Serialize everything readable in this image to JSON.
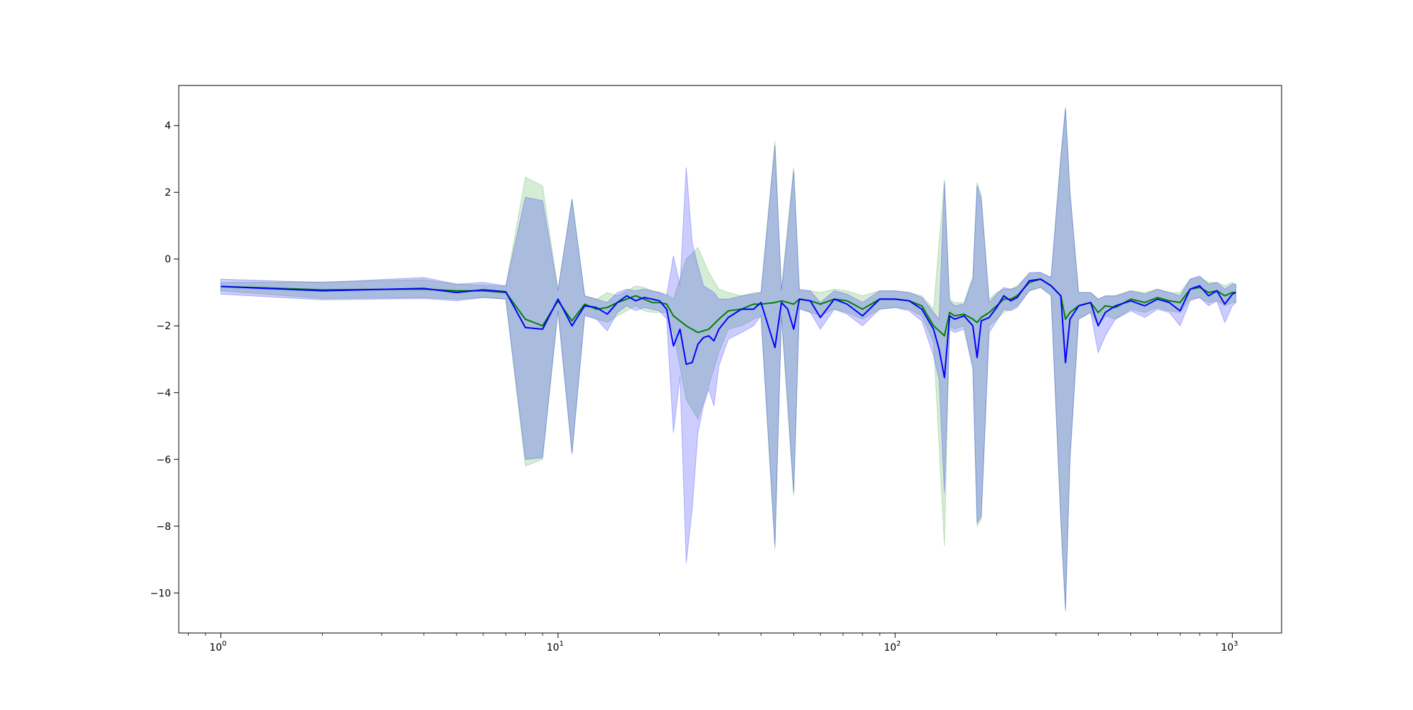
{
  "chart_data": {
    "type": "line",
    "title": "",
    "xlabel": "",
    "ylabel": "",
    "xscale": "log",
    "xlim": [
      0.75,
      1400
    ],
    "ylim": [
      -11.2,
      5.2
    ],
    "grid": false,
    "legend": "none",
    "x_ticks": [
      {
        "base": "10",
        "exp": "0",
        "value": 1
      },
      {
        "base": "10",
        "exp": "1",
        "value": 10
      },
      {
        "base": "10",
        "exp": "2",
        "value": 100
      },
      {
        "base": "10",
        "exp": "3",
        "value": 1000
      }
    ],
    "y_ticks": [
      {
        "value": 4,
        "label": "4"
      },
      {
        "value": 2,
        "label": "2"
      },
      {
        "value": 0,
        "label": "0"
      },
      {
        "value": -2,
        "label": "−2"
      },
      {
        "value": -4,
        "label": "−4"
      },
      {
        "value": -6,
        "label": "−6"
      },
      {
        "value": -8,
        "label": "−8"
      },
      {
        "value": -10,
        "label": "−10"
      }
    ],
    "series": [
      {
        "color": "#008000",
        "band_color": "#2ca02c",
        "points": [
          [
            1,
            -0.82,
            -0.7,
            -0.95
          ],
          [
            2,
            -0.92,
            -0.68,
            -1.18
          ],
          [
            4,
            -0.9,
            -0.62,
            -1.15
          ],
          [
            5,
            -0.95,
            -0.75,
            -1.2
          ],
          [
            6,
            -0.95,
            -0.78,
            -1.15
          ],
          [
            7,
            -1.0,
            -0.82,
            -1.2
          ],
          [
            8,
            -1.8,
            2.45,
            -6.2
          ],
          [
            9,
            -2.0,
            2.2,
            -6.0
          ],
          [
            10,
            -1.25,
            -0.9,
            -1.55
          ],
          [
            11,
            -1.85,
            1.8,
            -5.8
          ],
          [
            12,
            -1.35,
            -1.1,
            -1.65
          ],
          [
            13,
            -1.5,
            -1.2,
            -1.8
          ],
          [
            14,
            -1.45,
            -1.0,
            -1.9
          ],
          [
            15,
            -1.3,
            -1.1,
            -1.7
          ],
          [
            16,
            -1.2,
            -0.95,
            -1.55
          ],
          [
            17,
            -1.1,
            -0.8,
            -1.4
          ],
          [
            18,
            -1.2,
            -0.85,
            -1.55
          ],
          [
            19,
            -1.3,
            -0.95,
            -1.6
          ],
          [
            20,
            -1.3,
            -1.0,
            -1.6
          ],
          [
            21,
            -1.35,
            -1.05,
            -1.6
          ],
          [
            22,
            -1.7,
            -1.2,
            -2.2
          ],
          [
            24,
            -2.0,
            0.0,
            -4.2
          ],
          [
            26,
            -2.2,
            0.35,
            -4.8
          ],
          [
            28,
            -2.1,
            -0.4,
            -3.8
          ],
          [
            30,
            -1.8,
            -0.9,
            -2.8
          ],
          [
            32,
            -1.55,
            -1.0,
            -2.1
          ],
          [
            35,
            -1.5,
            -1.1,
            -2.0
          ],
          [
            38,
            -1.35,
            -1.0,
            -1.8
          ],
          [
            40,
            -1.35,
            -1.0,
            -1.7
          ],
          [
            44,
            -1.3,
            3.55,
            -8.7
          ],
          [
            46,
            -1.25,
            -0.9,
            -1.7
          ],
          [
            48,
            -1.3,
            1.0,
            -4.5
          ],
          [
            50,
            -1.35,
            2.75,
            -7.1
          ],
          [
            52,
            -1.2,
            -0.95,
            -1.45
          ],
          [
            56,
            -1.25,
            -0.95,
            -1.6
          ],
          [
            60,
            -1.35,
            -1.0,
            -1.7
          ],
          [
            66,
            -1.2,
            -0.9,
            -1.5
          ],
          [
            72,
            -1.25,
            -0.95,
            -1.6
          ],
          [
            80,
            -1.5,
            -1.1,
            -1.8
          ],
          [
            90,
            -1.2,
            -0.95,
            -1.5
          ],
          [
            100,
            -1.2,
            -0.95,
            -1.45
          ],
          [
            110,
            -1.25,
            -1.0,
            -1.5
          ],
          [
            120,
            -1.4,
            -1.1,
            -1.7
          ],
          [
            130,
            -2.0,
            -1.5,
            -2.5
          ],
          [
            140,
            -2.3,
            2.4,
            -8.6
          ],
          [
            145,
            -1.6,
            -1.2,
            -2.0
          ],
          [
            150,
            -1.7,
            -1.3,
            -2.1
          ],
          [
            160,
            -1.65,
            -1.3,
            -2.0
          ],
          [
            170,
            -1.8,
            -0.5,
            -3.2
          ],
          [
            175,
            -1.9,
            2.3,
            -8.0
          ],
          [
            180,
            -1.75,
            1.9,
            -7.8
          ],
          [
            190,
            -1.6,
            -1.2,
            -2.0
          ],
          [
            200,
            -1.4,
            -1.0,
            -1.8
          ],
          [
            210,
            -1.2,
            -0.9,
            -1.6
          ],
          [
            220,
            -1.2,
            -0.9,
            -1.5
          ],
          [
            230,
            -1.1,
            -0.8,
            -1.4
          ],
          [
            250,
            -0.7,
            -0.45,
            -0.95
          ],
          [
            270,
            -0.6,
            -0.4,
            -0.85
          ],
          [
            290,
            -0.8,
            -0.55,
            -1.05
          ],
          [
            310,
            -1.1,
            3.1,
            -7.9
          ],
          [
            320,
            -1.8,
            4.5,
            -10.5
          ],
          [
            330,
            -1.6,
            2.0,
            -6.0
          ],
          [
            350,
            -1.4,
            -1.0,
            -1.8
          ],
          [
            380,
            -1.3,
            -1.0,
            -1.6
          ],
          [
            400,
            -1.6,
            -1.2,
            -2.0
          ],
          [
            420,
            -1.4,
            -1.1,
            -1.7
          ],
          [
            450,
            -1.45,
            -1.1,
            -1.8
          ],
          [
            500,
            -1.2,
            -0.95,
            -1.5
          ],
          [
            550,
            -1.3,
            -1.0,
            -1.6
          ],
          [
            600,
            -1.15,
            -0.9,
            -1.45
          ],
          [
            650,
            -1.25,
            -1.0,
            -1.55
          ],
          [
            700,
            -1.3,
            -1.0,
            -1.6
          ],
          [
            750,
            -0.9,
            -0.6,
            -1.2
          ],
          [
            800,
            -0.85,
            -0.55,
            -1.15
          ],
          [
            850,
            -1.0,
            -0.7,
            -1.3
          ],
          [
            900,
            -0.95,
            -0.7,
            -1.25
          ],
          [
            950,
            -1.1,
            -0.8,
            -1.4
          ],
          [
            1000,
            -1.0,
            -0.7,
            -1.3
          ],
          [
            1024,
            -1.0,
            -0.75,
            -1.3
          ]
        ]
      },
      {
        "color": "#0000ff",
        "band_color": "#0000ff",
        "points": [
          [
            1,
            -0.82,
            -0.6,
            -1.05
          ],
          [
            2,
            -0.95,
            -0.7,
            -1.22
          ],
          [
            4,
            -0.88,
            -0.55,
            -1.18
          ],
          [
            5,
            -1.0,
            -0.75,
            -1.25
          ],
          [
            6,
            -0.92,
            -0.7,
            -1.15
          ],
          [
            7,
            -0.98,
            -0.8,
            -1.2
          ],
          [
            8,
            -2.05,
            1.85,
            -6.0
          ],
          [
            9,
            -2.1,
            1.75,
            -5.95
          ],
          [
            10,
            -1.2,
            -0.95,
            -1.55
          ],
          [
            11,
            -2.0,
            1.8,
            -5.85
          ],
          [
            12,
            -1.4,
            -1.1,
            -1.7
          ],
          [
            13,
            -1.45,
            -1.2,
            -1.8
          ],
          [
            14,
            -1.65,
            -1.3,
            -2.15
          ],
          [
            15,
            -1.3,
            -1.0,
            -1.6
          ],
          [
            16,
            -1.1,
            -0.9,
            -1.4
          ],
          [
            17,
            -1.25,
            -0.95,
            -1.55
          ],
          [
            18,
            -1.15,
            -0.9,
            -1.45
          ],
          [
            19,
            -1.2,
            -0.95,
            -1.5
          ],
          [
            20,
            -1.25,
            -1.0,
            -1.55
          ],
          [
            21,
            -1.5,
            -1.1,
            -1.8
          ],
          [
            22,
            -2.6,
            0.1,
            -5.2
          ],
          [
            23,
            -2.1,
            -0.8,
            -3.5
          ],
          [
            24,
            -3.15,
            2.75,
            -9.1
          ],
          [
            25,
            -3.1,
            0.5,
            -7.5
          ],
          [
            26,
            -2.55,
            -0.2,
            -5.2
          ],
          [
            27,
            -2.35,
            -0.8,
            -4.4
          ],
          [
            28,
            -2.3,
            -0.9,
            -3.9
          ],
          [
            29,
            -2.45,
            -1.0,
            -4.4
          ],
          [
            30,
            -2.1,
            -1.2,
            -3.2
          ],
          [
            32,
            -1.75,
            -1.2,
            -2.4
          ],
          [
            35,
            -1.5,
            -1.1,
            -2.2
          ],
          [
            38,
            -1.5,
            -1.05,
            -2.0
          ],
          [
            40,
            -1.3,
            -1.0,
            -1.7
          ],
          [
            44,
            -2.65,
            3.4,
            -8.6
          ],
          [
            46,
            -1.3,
            -0.95,
            -1.7
          ],
          [
            48,
            -1.5,
            0.8,
            -4.3
          ],
          [
            50,
            -2.1,
            2.65,
            -7.0
          ],
          [
            52,
            -1.2,
            -0.9,
            -1.5
          ],
          [
            56,
            -1.25,
            -0.95,
            -1.6
          ],
          [
            60,
            -1.75,
            -1.3,
            -2.1
          ],
          [
            66,
            -1.2,
            -0.95,
            -1.5
          ],
          [
            72,
            -1.35,
            -1.05,
            -1.65
          ],
          [
            80,
            -1.7,
            -1.3,
            -2.0
          ],
          [
            90,
            -1.2,
            -0.95,
            -1.5
          ],
          [
            100,
            -1.2,
            -0.95,
            -1.45
          ],
          [
            110,
            -1.25,
            -1.0,
            -1.55
          ],
          [
            120,
            -1.5,
            -1.15,
            -1.85
          ],
          [
            130,
            -2.1,
            -1.6,
            -2.9
          ],
          [
            135,
            -2.7,
            -1.8,
            -3.6
          ],
          [
            140,
            -3.55,
            2.3,
            -7.0
          ],
          [
            145,
            -1.7,
            -1.25,
            -2.1
          ],
          [
            150,
            -1.8,
            -1.4,
            -2.2
          ],
          [
            160,
            -1.7,
            -1.35,
            -2.1
          ],
          [
            170,
            -2.0,
            -0.6,
            -3.3
          ],
          [
            175,
            -2.95,
            2.2,
            -7.9
          ],
          [
            180,
            -1.85,
            1.8,
            -7.7
          ],
          [
            190,
            -1.75,
            -1.3,
            -2.2
          ],
          [
            200,
            -1.45,
            -1.05,
            -1.85
          ],
          [
            210,
            -1.1,
            -0.85,
            -1.5
          ],
          [
            220,
            -1.25,
            -0.9,
            -1.55
          ],
          [
            230,
            -1.15,
            -0.85,
            -1.45
          ],
          [
            250,
            -0.65,
            -0.4,
            -0.95
          ],
          [
            270,
            -0.6,
            -0.4,
            -0.85
          ],
          [
            290,
            -0.8,
            -0.55,
            -1.1
          ],
          [
            310,
            -1.1,
            3.05,
            -7.8
          ],
          [
            320,
            -3.1,
            4.55,
            -10.55
          ],
          [
            330,
            -1.8,
            2.0,
            -6.0
          ],
          [
            350,
            -1.4,
            -1.0,
            -1.8
          ],
          [
            380,
            -1.3,
            -1.0,
            -1.6
          ],
          [
            400,
            -2.0,
            -1.2,
            -2.8
          ],
          [
            420,
            -1.6,
            -1.1,
            -2.3
          ],
          [
            450,
            -1.4,
            -1.1,
            -1.8
          ],
          [
            500,
            -1.25,
            -0.95,
            -1.55
          ],
          [
            550,
            -1.4,
            -1.05,
            -1.75
          ],
          [
            600,
            -1.2,
            -0.9,
            -1.5
          ],
          [
            650,
            -1.3,
            -1.0,
            -1.6
          ],
          [
            700,
            -1.55,
            -1.1,
            -2.0
          ],
          [
            750,
            -0.9,
            -0.6,
            -1.25
          ],
          [
            800,
            -0.8,
            -0.5,
            -1.15
          ],
          [
            850,
            -1.1,
            -0.75,
            -1.4
          ],
          [
            900,
            -0.95,
            -0.7,
            -1.25
          ],
          [
            950,
            -1.35,
            -0.9,
            -1.9
          ],
          [
            1000,
            -1.05,
            -0.75,
            -1.4
          ],
          [
            1024,
            -1.0,
            -0.75,
            -1.3
          ]
        ]
      }
    ]
  }
}
